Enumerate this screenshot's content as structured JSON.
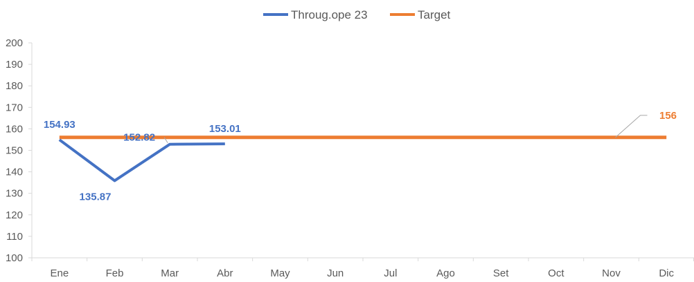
{
  "chart_data": {
    "type": "line",
    "categories": [
      "Ene",
      "Feb",
      "Mar",
      "Abr",
      "May",
      "Jun",
      "Jul",
      "Ago",
      "Set",
      "Oct",
      "Nov",
      "Dic"
    ],
    "ylim": [
      100,
      200
    ],
    "yticks": [
      100,
      110,
      120,
      130,
      140,
      150,
      160,
      170,
      180,
      190,
      200
    ],
    "grid": false,
    "legend_position": "top",
    "series": [
      {
        "name": "Throug.ope 23",
        "color": "#4472C4",
        "values": [
          154.93,
          135.87,
          152.82,
          153.01,
          null,
          null,
          null,
          null,
          null,
          null,
          null,
          null
        ],
        "labels": [
          {
            "index": 0,
            "text": "154.93"
          },
          {
            "index": 1,
            "text": "135.87"
          },
          {
            "index": 2,
            "text": "152.82"
          },
          {
            "index": 3,
            "text": "153.01"
          }
        ]
      },
      {
        "name": "Target",
        "color": "#ED7D31",
        "values": [
          156,
          156,
          156,
          156,
          156,
          156,
          156,
          156,
          156,
          156,
          156,
          156
        ],
        "labels": [
          {
            "index": 11,
            "text": "156"
          }
        ]
      }
    ]
  }
}
